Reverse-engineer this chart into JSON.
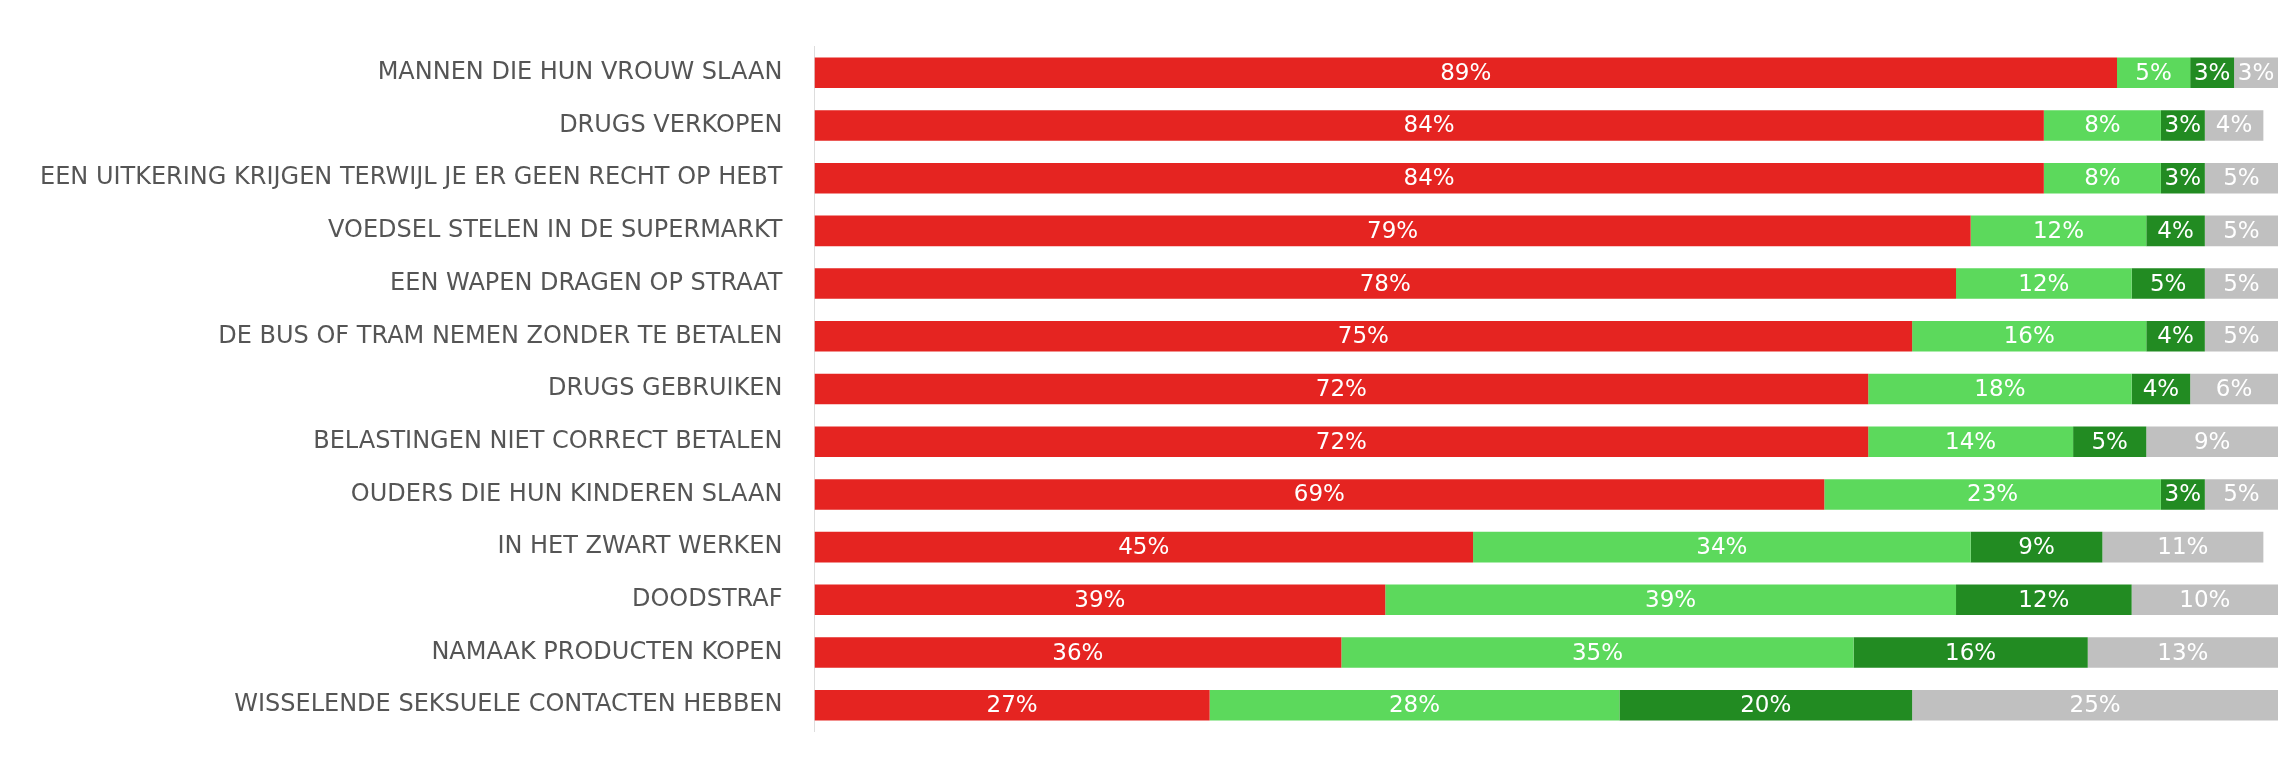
{
  "chart_data": {
    "type": "bar",
    "orientation": "horizontal",
    "stacked": true,
    "legend": false,
    "grid": false,
    "tick_labels": "y",
    "categories": [
      "MANNEN DIE HUN VROUW SLAAN",
      "DRUGS VERKOPEN",
      "EEN UITKERING KRIJGEN TERWIJL JE ER GEEN RECHT OP HEBT",
      "VOEDSEL STELEN IN DE SUPERMARKT",
      "EEN WAPEN DRAGEN OP STRAAT",
      "DE BUS OF TRAM NEMEN ZONDER TE BETALEN",
      "DRUGS GEBRUIKEN",
      "BELASTINGEN NIET CORRECT BETALEN",
      "OUDERS DIE HUN KINDEREN SLAAN",
      "IN HET ZWART WERKEN",
      "DOODSTRAF",
      "NAMAAK PRODUCTEN KOPEN",
      "WISSELENDE SEKSUELE CONTACTEN HEBBEN"
    ],
    "series": [
      {
        "color": "#e52421",
        "values": [
          89,
          84,
          84,
          79,
          78,
          75,
          72,
          72,
          69,
          45,
          39,
          36,
          27
        ],
        "value_labels": [
          "89%",
          "84%",
          "84%",
          "79%",
          "78%",
          "75%",
          "72%",
          "72%",
          "69%",
          "45%",
          "39%",
          "36%",
          "27%"
        ]
      },
      {
        "color": "#5cd95c",
        "values": [
          5,
          8,
          8,
          12,
          12,
          16,
          18,
          14,
          23,
          34,
          39,
          35,
          28
        ],
        "value_labels": [
          "5%",
          "8%",
          "8%",
          "12%",
          "12%",
          "16%",
          "18%",
          "14%",
          "23%",
          "34%",
          "39%",
          "35%",
          "28%"
        ]
      },
      {
        "color": "#228b22",
        "values": [
          3,
          3,
          3,
          4,
          5,
          4,
          4,
          5,
          3,
          9,
          12,
          16,
          20
        ],
        "value_labels": [
          "3%",
          "3%",
          "3%",
          "4%",
          "5%",
          "4%",
          "4%",
          "5%",
          "3%",
          "9%",
          "12%",
          "16%",
          "20%"
        ]
      },
      {
        "color": "#c0c0c0",
        "values": [
          3,
          4,
          5,
          5,
          5,
          5,
          6,
          9,
          5,
          11,
          10,
          13,
          25
        ],
        "value_labels": [
          "3%",
          "4%",
          "5%",
          "5%",
          "5%",
          "5%",
          "6%",
          "9%",
          "5%",
          "11%",
          "10%",
          "13%",
          "25%"
        ]
      }
    ]
  }
}
